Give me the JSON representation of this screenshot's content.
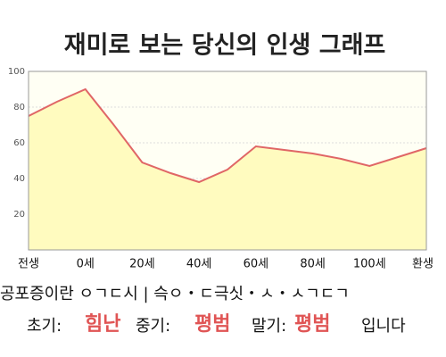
{
  "chart_data": {
    "type": "area",
    "title": "재미로 보는 당신의 인생 그래프",
    "categories": [
      "전생",
      null,
      "0세",
      null,
      "20세",
      null,
      "40세",
      null,
      "60세",
      null,
      "80세",
      null,
      "100세",
      null,
      "환생"
    ],
    "series": [
      {
        "name": null,
        "color": "#e06666",
        "fill": "#fffbbf",
        "values": [
          75,
          83,
          90,
          70,
          49,
          43,
          38,
          45,
          58,
          56,
          54,
          51,
          47,
          52,
          57
        ]
      }
    ],
    "ylim": [
      0,
      100
    ],
    "yticks": [
      20,
      40,
      60,
      80,
      100
    ],
    "grid": true
  },
  "footer": {
    "line1": "공포증이란 ㅇㄱㄷ시 | 슥ㅇ・ㄷ극싯・ㅅ・ㅅㄱㄷㄱ",
    "early_label": "초기:",
    "early": "힘난",
    "mid_label": "중기:",
    "mid": "평범",
    "late_label": "말기:",
    "late": "평범",
    "end": "입니다"
  }
}
